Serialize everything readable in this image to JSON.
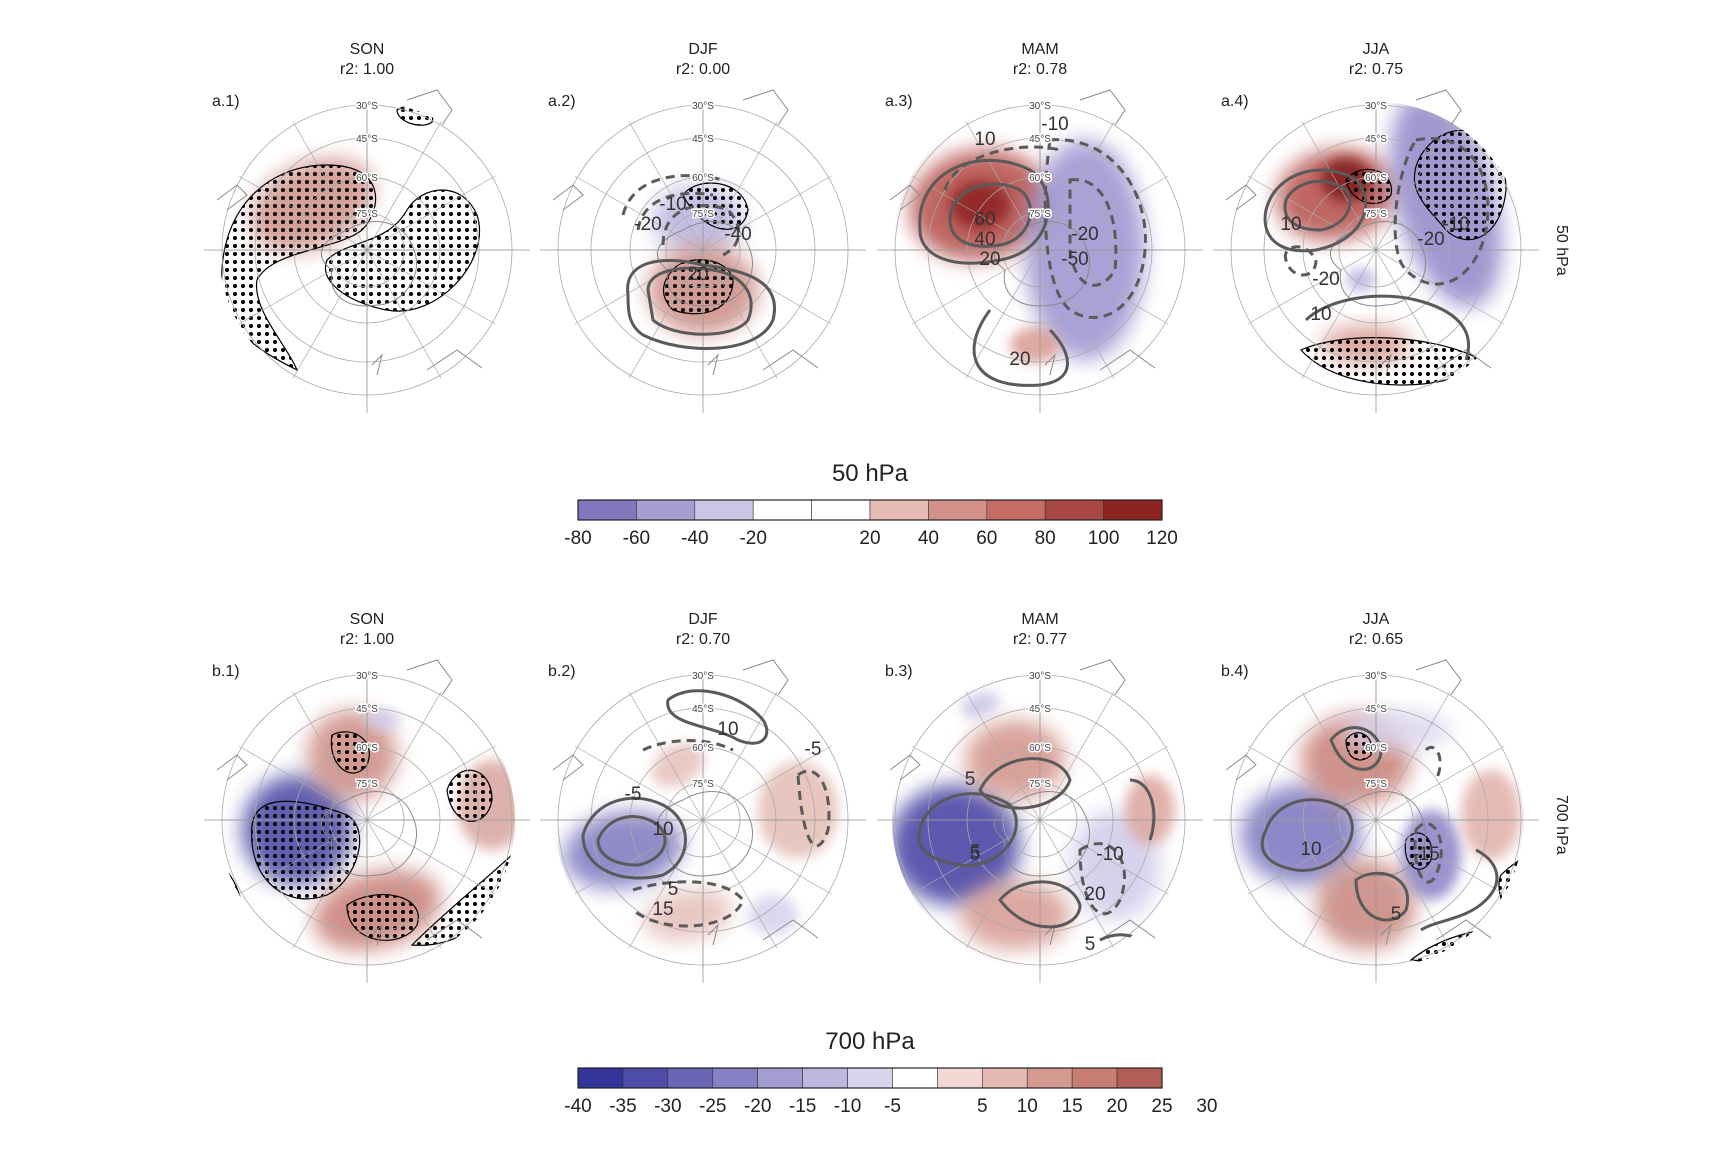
{
  "chart_data": {
    "type": "heatmap",
    "projection": "south-polar-stereographic",
    "latitude_labels": [
      "30°S",
      "45°S",
      "60°S",
      "75°S"
    ],
    "rows": [
      {
        "level": "50 hPa",
        "colorbar_title": "50 hPa",
        "colorbar_ticks": [
          "-80",
          "-60",
          "-40",
          "-20",
          "20",
          "40",
          "60",
          "80",
          "100",
          "120"
        ],
        "colorbar_colors": [
          "#8378bd",
          "#a69fd1",
          "#cbc6e5",
          "#ffffff",
          "#ffffff",
          "#e6bcb5",
          "#d49189",
          "#c56c64",
          "#a84644",
          "#8c2422"
        ],
        "panels": [
          {
            "label": "a.1)",
            "season": "SON",
            "r2_text": "r2: 1.00",
            "contour_labels": []
          },
          {
            "label": "a.2)",
            "season": "DJF",
            "r2_text": "r2: 0.00",
            "contour_labels": [
              "-20",
              "-10",
              "-40",
              "20"
            ]
          },
          {
            "label": "a.3)",
            "season": "MAM",
            "r2_text": "r2: 0.78",
            "contour_labels": [
              "10",
              "-10",
              "60",
              "40",
              "20",
              "-20",
              "-50",
              "20"
            ]
          },
          {
            "label": "a.4)",
            "season": "JJA",
            "r2_text": "r2: 0.75",
            "contour_labels": [
              "10",
              "-20",
              "-20",
              "10",
              "-10"
            ]
          }
        ]
      },
      {
        "level": "700 hPa",
        "colorbar_title": "700 hPa",
        "colorbar_ticks": [
          "-40",
          "-35",
          "-30",
          "-25",
          "-20",
          "-15",
          "-10",
          "-5",
          "5",
          "10",
          "15",
          "20",
          "25",
          "30"
        ],
        "colorbar_colors": [
          "#34359a",
          "#4d4ca8",
          "#6a66b6",
          "#8680c4",
          "#a39dd2",
          "#bdb8e0",
          "#d8d4ee",
          "#ffffff",
          "#f1d8d3",
          "#e3b9b1",
          "#d49a90",
          "#c67d72",
          "#b15f56"
        ],
        "panels": [
          {
            "label": "b.1)",
            "season": "SON",
            "r2_text": "r2: 1.00",
            "contour_labels": []
          },
          {
            "label": "b.2)",
            "season": "DJF",
            "r2_text": "r2: 0.70",
            "contour_labels": [
              "10",
              "-5",
              "-5",
              "10",
              "5",
              "15"
            ]
          },
          {
            "label": "b.3)",
            "season": "MAM",
            "r2_text": "r2: 0.77",
            "contour_labels": [
              "5",
              "5",
              "5",
              "-10",
              "20",
              "5"
            ]
          },
          {
            "label": "b.4)",
            "season": "JJA",
            "r2_text": "r2: 0.65",
            "contour_labels": [
              "10",
              "-15",
              "5"
            ]
          }
        ]
      }
    ]
  }
}
